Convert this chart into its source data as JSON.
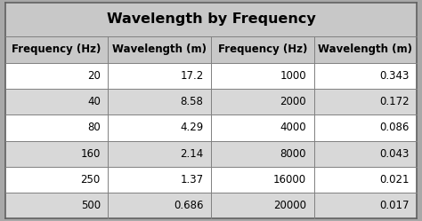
{
  "title": "Wavelength by Frequency",
  "col_headers": [
    "Frequency (Hz)",
    "Wavelength (m)",
    "Frequency (Hz)",
    "Wavelength (m)"
  ],
  "rows": [
    [
      "20",
      "17.2",
      "1000",
      "0.343"
    ],
    [
      "40",
      "8.58",
      "2000",
      "0.172"
    ],
    [
      "80",
      "4.29",
      "4000",
      "0.086"
    ],
    [
      "160",
      "2.14",
      "8000",
      "0.043"
    ],
    [
      "250",
      "1.37",
      "16000",
      "0.021"
    ],
    [
      "500",
      "0.686",
      "20000",
      "0.017"
    ]
  ],
  "title_bg": "#c8c8c8",
  "header_bg": "#c8c8c8",
  "row_bg_even": "#ffffff",
  "row_bg_odd": "#d8d8d8",
  "outer_bg": "#b0b0b0",
  "border_color": "#808080",
  "text_color": "#000000",
  "title_fontsize": 11.5,
  "header_fontsize": 8.5,
  "data_fontsize": 8.5,
  "fig_bg": "#a8a8a8"
}
